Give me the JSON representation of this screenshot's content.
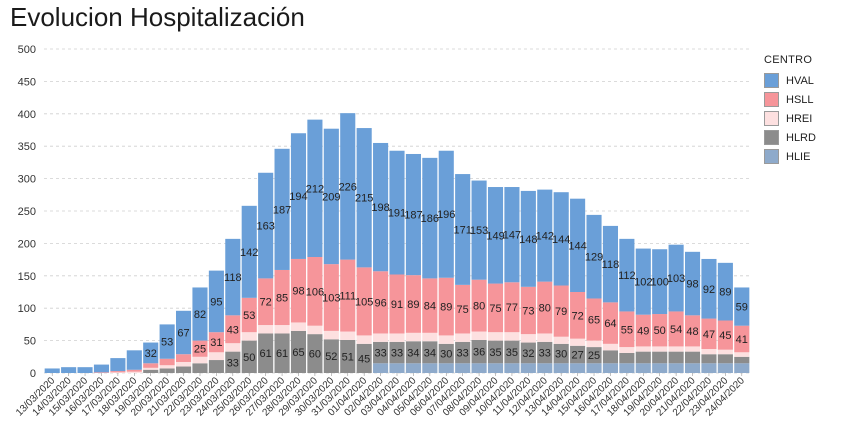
{
  "chart_data": {
    "type": "bar",
    "stacked": true,
    "title": "Evolucion Hospitalización",
    "xlabel": "",
    "ylabel": "",
    "ylim": [
      0,
      500
    ],
    "yticks": [
      0,
      50,
      100,
      150,
      200,
      250,
      300,
      350,
      400,
      450,
      500
    ],
    "grid": true,
    "legend": {
      "title": "CENTRO",
      "position": "right"
    },
    "categories": [
      "13/03/2020",
      "14/03/2020",
      "15/03/2020",
      "16/03/2020",
      "17/03/2020",
      "18/03/2020",
      "19/03/2020",
      "20/03/2020",
      "21/03/2020",
      "22/03/2020",
      "23/03/2020",
      "24/03/2020",
      "25/03/2020",
      "26/03/2020",
      "27/03/2020",
      "28/03/2020",
      "29/03/2020",
      "30/03/2020",
      "31/03/2020",
      "01/04/2020",
      "02/04/2020",
      "03/04/2020",
      "04/04/2020",
      "05/04/2020",
      "06/04/2020",
      "07/04/2020",
      "08/04/2020",
      "09/04/2020",
      "10/04/2020",
      "11/04/2020",
      "12/04/2020",
      "13/04/2020",
      "14/04/2020",
      "15/04/2020",
      "16/04/2020",
      "17/04/2020",
      "18/04/2020",
      "19/04/2020",
      "20/04/2020",
      "21/04/2020",
      "22/04/2020",
      "23/04/2020",
      "24/04/2020"
    ],
    "series": [
      {
        "name": "HLIE",
        "color": "#8eaacb",
        "values": [
          0,
          0,
          0,
          0,
          0,
          0,
          0,
          0,
          0,
          0,
          0,
          0,
          0,
          0,
          0,
          0,
          0,
          0,
          0,
          0,
          15,
          15,
          15,
          15,
          15,
          15,
          15,
          15,
          15,
          15,
          15,
          15,
          15,
          15,
          15,
          15,
          15,
          15,
          15,
          15,
          15,
          15,
          15
        ]
      },
      {
        "name": "HLRD",
        "color": "#8c8c8c",
        "values": [
          0,
          0,
          0,
          0,
          0,
          0,
          5,
          7,
          10,
          15,
          20,
          33,
          50,
          61,
          61,
          65,
          60,
          52,
          51,
          45,
          33,
          33,
          34,
          34,
          30,
          33,
          36,
          35,
          35,
          32,
          33,
          30,
          27,
          25,
          20,
          16,
          18,
          18,
          18,
          18,
          14,
          14,
          10
        ]
      },
      {
        "name": "HREI",
        "color": "#fde0e0",
        "values": [
          0,
          0,
          0,
          0,
          1,
          2,
          3,
          5,
          7,
          10,
          12,
          13,
          13,
          13,
          13,
          13,
          13,
          13,
          13,
          13,
          13,
          13,
          13,
          13,
          13,
          13,
          13,
          13,
          13,
          13,
          13,
          11,
          11,
          10,
          10,
          9,
          8,
          8,
          8,
          8,
          8,
          7,
          7
        ]
      },
      {
        "name": "HSLL",
        "color": "#f6959a",
        "values": [
          0,
          0,
          0,
          1,
          2,
          3,
          7,
          10,
          12,
          25,
          31,
          43,
          53,
          72,
          85,
          98,
          106,
          103,
          111,
          105,
          96,
          91,
          89,
          84,
          89,
          75,
          80,
          75,
          77,
          73,
          80,
          79,
          72,
          65,
          64,
          55,
          49,
          50,
          54,
          48,
          47,
          45,
          41
        ]
      },
      {
        "name": "HVAL",
        "color": "#6a9fd8",
        "values": [
          7,
          9,
          9,
          12,
          20,
          30,
          32,
          53,
          67,
          82,
          95,
          118,
          142,
          163,
          187,
          194,
          212,
          209,
          226,
          215,
          198,
          191,
          187,
          186,
          196,
          171,
          153,
          149,
          147,
          148,
          142,
          144,
          144,
          129,
          118,
          112,
          102,
          100,
          103,
          98,
          92,
          89,
          59
        ]
      }
    ],
    "data_labels": {
      "HVAL": [
        "",
        "",
        "",
        "",
        "",
        "",
        "32",
        "53",
        "67",
        "82",
        "95",
        "118",
        "142",
        "163",
        "187",
        "194",
        "212",
        "209",
        "226",
        "215",
        "198",
        "191",
        "187",
        "186",
        "196",
        "171",
        "153",
        "149",
        "147",
        "148",
        "142",
        "144",
        "144",
        "129",
        "118",
        "112",
        "102",
        "100",
        "103",
        "98",
        "92",
        "89",
        "59"
      ],
      "HSLL": [
        "",
        "",
        "",
        "",
        "",
        "",
        "",
        "",
        "",
        "25",
        "31",
        "43",
        "53",
        "72",
        "85",
        "98",
        "106",
        "103",
        "111",
        "105",
        "96",
        "91",
        "89",
        "84",
        "89",
        "75",
        "80",
        "75",
        "77",
        "73",
        "80",
        "79",
        "72",
        "65",
        "64",
        "55",
        "49",
        "50",
        "54",
        "48",
        "47",
        "45",
        "41"
      ],
      "HLRD": [
        "",
        "",
        "",
        "",
        "",
        "",
        "",
        "",
        "",
        "",
        "",
        "33",
        "50",
        "61",
        "61",
        "65",
        "60",
        "52",
        "51",
        "45",
        "33",
        "33",
        "34",
        "34",
        "30",
        "33",
        "36",
        "35",
        "35",
        "32",
        "33",
        "30",
        "27",
        "25",
        "",
        "",
        "",
        "",
        "",
        "",
        "",
        "",
        ""
      ]
    }
  }
}
